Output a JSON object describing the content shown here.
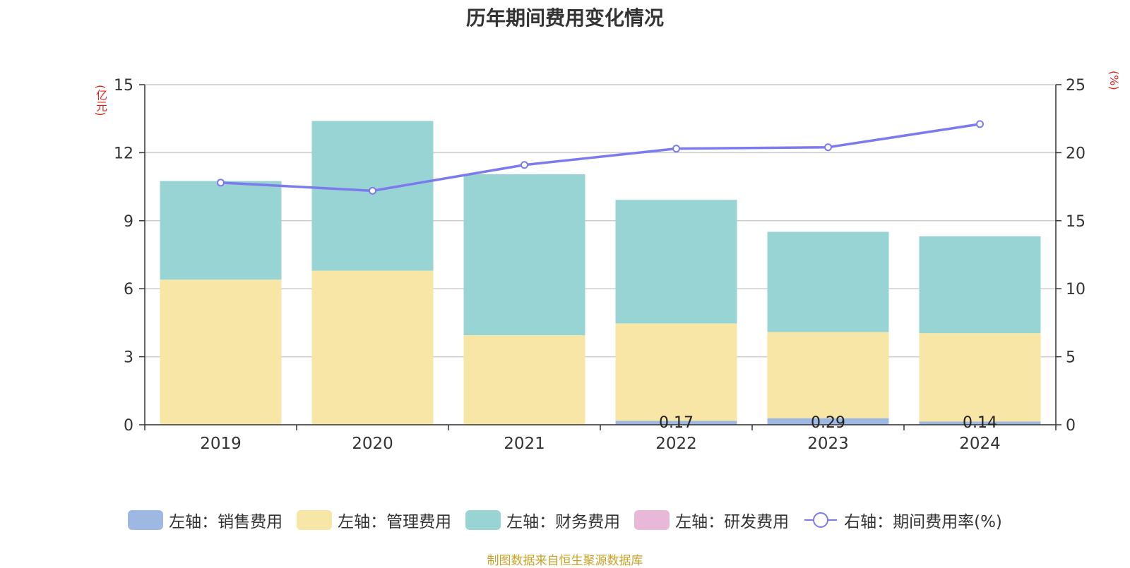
{
  "title": "历年期间费用变化情况",
  "left_unit": "(亿元)",
  "right_unit": "(%)",
  "source": "制图数据来自恒生聚源数据库",
  "colors": {
    "sales": "#9db8e3",
    "admin": "#f7e6a6",
    "finance": "#98d4d4",
    "rd": "#e8b8d8",
    "rate": "#7b7bed"
  },
  "chart_data": {
    "type": "bar",
    "stacked": true,
    "categories": [
      "2019",
      "2020",
      "2021",
      "2022",
      "2023",
      "2024"
    ],
    "series": [
      {
        "name": "左轴：销售费用",
        "axis": "left",
        "values": [
          0,
          0,
          0,
          0.17,
          0.29,
          0.14
        ],
        "labels": [
          "",
          "",
          "",
          "0.17",
          "0.29",
          "0.14"
        ]
      },
      {
        "name": "左轴：管理费用",
        "axis": "left",
        "values": [
          6.4,
          6.8,
          3.95,
          4.3,
          3.8,
          3.9
        ]
      },
      {
        "name": "左轴：财务费用",
        "axis": "left",
        "values": [
          4.35,
          6.6,
          7.1,
          5.45,
          4.42,
          4.27
        ]
      },
      {
        "name": "左轴：研发费用",
        "axis": "left",
        "values": [
          0,
          0,
          0,
          0,
          0,
          0
        ]
      },
      {
        "name": "右轴：期间费用率(%)",
        "axis": "right",
        "type": "line",
        "values": [
          17.8,
          17.2,
          19.1,
          20.3,
          20.4,
          22.1
        ]
      }
    ],
    "left_axis": {
      "ylim": [
        0,
        15
      ],
      "ticks": [
        "0",
        "3",
        "6",
        "9",
        "12",
        "15"
      ]
    },
    "right_axis": {
      "ylim": [
        0,
        25
      ],
      "ticks": [
        "0",
        "5",
        "10",
        "15",
        "20",
        "25"
      ]
    },
    "grid": true,
    "legend_position": "bottom"
  }
}
